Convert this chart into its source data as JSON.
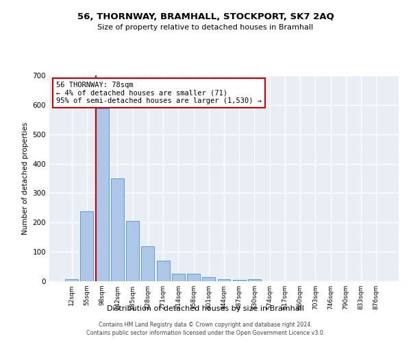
{
  "title": "56, THORNWAY, BRAMHALL, STOCKPORT, SK7 2AQ",
  "subtitle": "Size of property relative to detached houses in Bramhall",
  "xlabel": "Distribution of detached houses by size in Bramhall",
  "ylabel": "Number of detached properties",
  "categories": [
    "12sqm",
    "55sqm",
    "98sqm",
    "142sqm",
    "185sqm",
    "228sqm",
    "271sqm",
    "314sqm",
    "358sqm",
    "401sqm",
    "444sqm",
    "487sqm",
    "530sqm",
    "574sqm",
    "617sqm",
    "660sqm",
    "703sqm",
    "746sqm",
    "790sqm",
    "833sqm",
    "876sqm"
  ],
  "bar_heights": [
    7,
    238,
    588,
    350,
    205,
    118,
    70,
    26,
    26,
    15,
    8,
    5,
    7,
    0,
    0,
    0,
    0,
    0,
    0,
    0,
    0
  ],
  "bar_color": "#aec6e8",
  "bar_edge_color": "#5a9fd4",
  "background_color": "#e8eef4",
  "grid_color": "#ffffff",
  "marker_line_color": "#cc0000",
  "annotation_text": "56 THORNWAY: 78sqm\n← 4% of detached houses are smaller (71)\n95% of semi-detached houses are larger (1,530) →",
  "annotation_box_color": "#ffffff",
  "annotation_box_edge": "#cc0000",
  "ylim": [
    0,
    700
  ],
  "yticks": [
    0,
    100,
    200,
    300,
    400,
    500,
    600,
    700
  ],
  "footer_line1": "Contains HM Land Registry data © Crown copyright and database right 2024.",
  "footer_line2": "Contains public sector information licensed under the Open Government Licence v3.0."
}
